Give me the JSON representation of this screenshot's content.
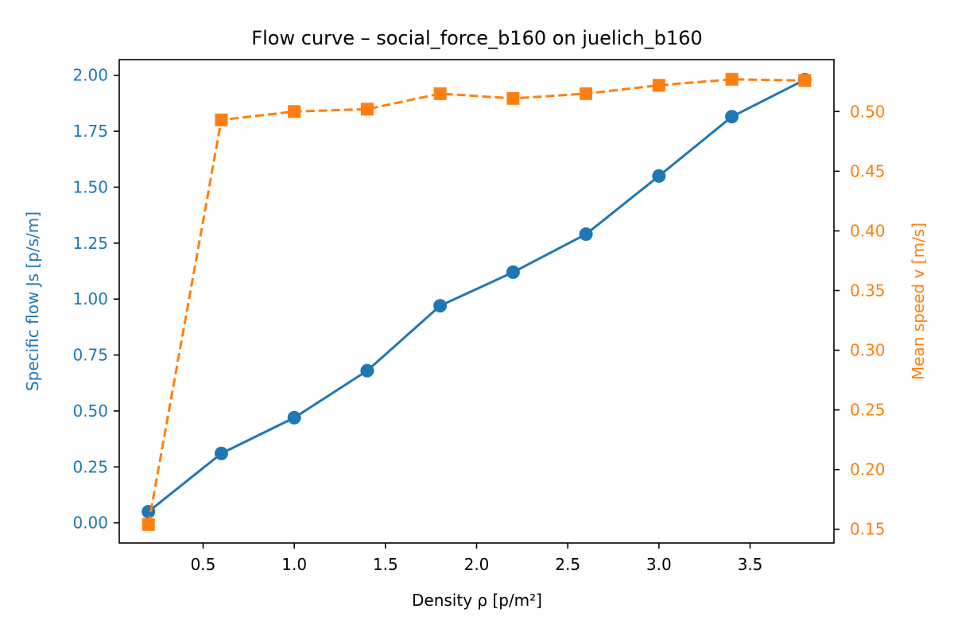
{
  "chart_data": {
    "type": "line",
    "title": "Flow curve – social_force_b160 on juelich_b160",
    "xlabel": "Density ρ [p/m²]",
    "ylabel_left": "Specific flow Js [p/s/m]",
    "ylabel_right": "Mean speed v [m/s]",
    "xlim": [
      0.04,
      3.96
    ],
    "ylim_left": [
      -0.09,
      2.07
    ],
    "ylim_right": [
      0.1385,
      0.5435
    ],
    "x_ticks": [
      "0.5",
      "1.0",
      "1.5",
      "2.0",
      "2.5",
      "3.0",
      "3.5"
    ],
    "y_left_ticks": [
      "0.00",
      "0.25",
      "0.50",
      "0.75",
      "1.00",
      "1.25",
      "1.50",
      "1.75",
      "2.00"
    ],
    "y_right_ticks": [
      "0.15",
      "0.20",
      "0.25",
      "0.30",
      "0.35",
      "0.40",
      "0.45",
      "0.50"
    ],
    "x": [
      0.2,
      0.6,
      1.0,
      1.4,
      1.8,
      2.2,
      2.6,
      3.0,
      3.4,
      3.8
    ],
    "series": [
      {
        "axis": "left",
        "color": "#1f77b4",
        "marker": "circle",
        "linestyle": "solid",
        "values": [
          0.05,
          0.31,
          0.47,
          0.68,
          0.97,
          1.12,
          1.29,
          1.55,
          1.815,
          1.98
        ]
      },
      {
        "axis": "right",
        "color": "#ff7f0e",
        "marker": "square",
        "linestyle": "dashed",
        "values": [
          0.154,
          0.493,
          0.5,
          0.502,
          0.515,
          0.511,
          0.515,
          0.522,
          0.527,
          0.526
        ]
      }
    ],
    "grid": false,
    "legend": "none"
  }
}
